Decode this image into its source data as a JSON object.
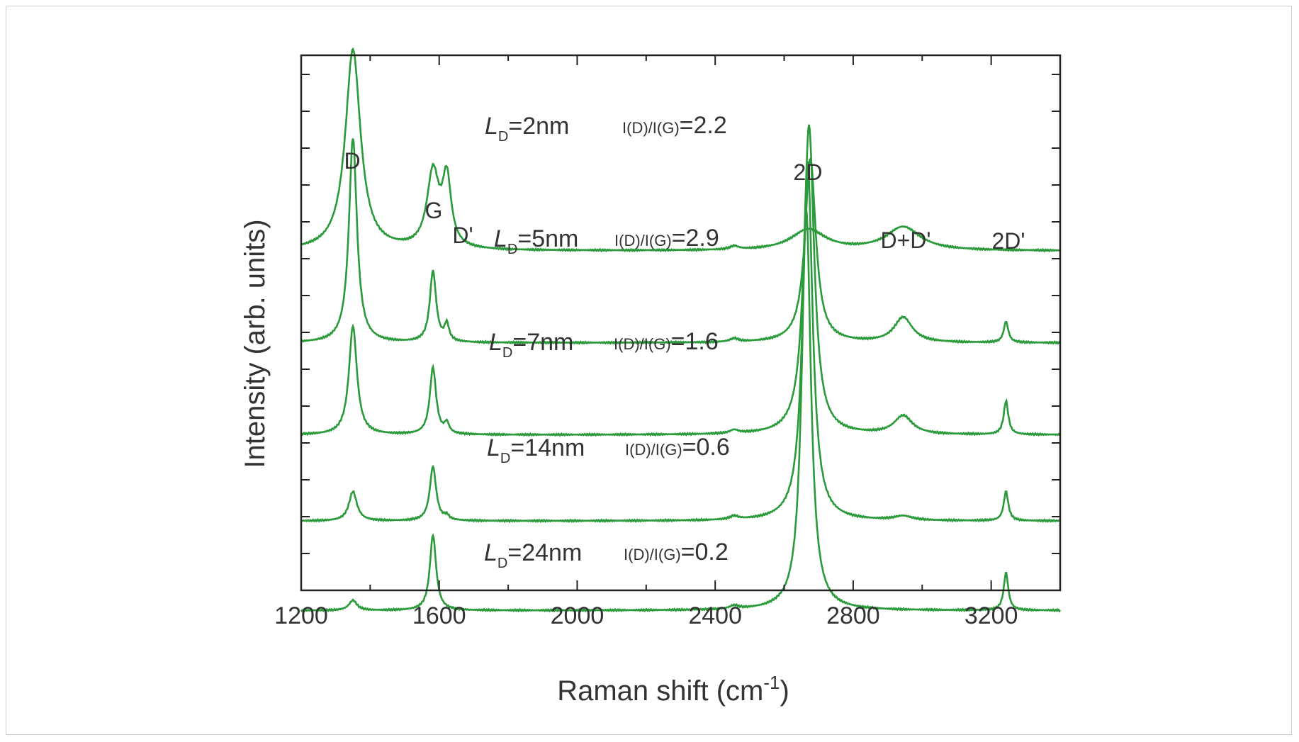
{
  "chart_data": {
    "type": "line",
    "title": "",
    "xlabel": "Raman shift (cm",
    "xlabel_sup": "-1",
    "xlabel_end": ")",
    "ylabel": "Intensity (arb. units)",
    "xlim": [
      1200,
      3400
    ],
    "x_ticks": [
      "1200",
      "1600",
      "2000",
      "2400",
      "2800",
      "3200"
    ],
    "y_tick_labels": false,
    "line_color": "#2a9a3a",
    "grid": false,
    "peaks": [
      {
        "label": "D",
        "x": 1350
      },
      {
        "label": "G",
        "x": 1582
      },
      {
        "label": "D'",
        "x": 1620
      },
      {
        "label": "2D",
        "x": 2680
      },
      {
        "label": "D+D'",
        "x": 2940
      },
      {
        "label": "2D'",
        "x": 3240
      }
    ],
    "series": [
      {
        "LD_prefix": "L",
        "LD_sub": "D",
        "LD_value": "=2nm",
        "ratio_label": "I(D)/I(G)",
        "ratio_value": "=2.2",
        "offset": 4.05,
        "D": 2.4,
        "G": 0.9,
        "Dp": 0.8,
        "D2": 0.25,
        "DDp": 0.28,
        "D2p": 0.0
      },
      {
        "LD_prefix": "L",
        "LD_sub": "D",
        "LD_value": "=5nm",
        "ratio_label": "I(D)/I(G)",
        "ratio_value": "=2.9",
        "offset": 2.95,
        "D": 2.45,
        "G": 0.85,
        "Dp": 0.2,
        "D2": 2.2,
        "DDp": 0.3,
        "D2p": 0.25
      },
      {
        "LD_prefix": "L",
        "LD_sub": "D",
        "LD_value": "=7nm",
        "ratio_label": "I(D)/I(G)",
        "ratio_value": "=1.6",
        "offset": 1.85,
        "D": 1.3,
        "G": 0.8,
        "Dp": 0.12,
        "D2": 3.7,
        "DDp": 0.22,
        "D2p": 0.4
      },
      {
        "LD_prefix": "L",
        "LD_sub": "D",
        "LD_value": "=14nm",
        "ratio_label": "I(D)/I(G)",
        "ratio_value": "=0.6",
        "offset": 0.82,
        "D": 0.35,
        "G": 0.65,
        "Dp": 0.05,
        "D2": 4.3,
        "DDp": 0.05,
        "D2p": 0.35
      },
      {
        "LD_prefix": "L",
        "LD_sub": "D",
        "LD_value": "=24nm",
        "ratio_label": "I(D)/I(G)",
        "ratio_value": "=0.2",
        "offset": -0.25,
        "D": 0.12,
        "G": 0.9,
        "Dp": 0.0,
        "D2": 4.8,
        "DDp": 0.0,
        "D2p": 0.45
      }
    ]
  }
}
